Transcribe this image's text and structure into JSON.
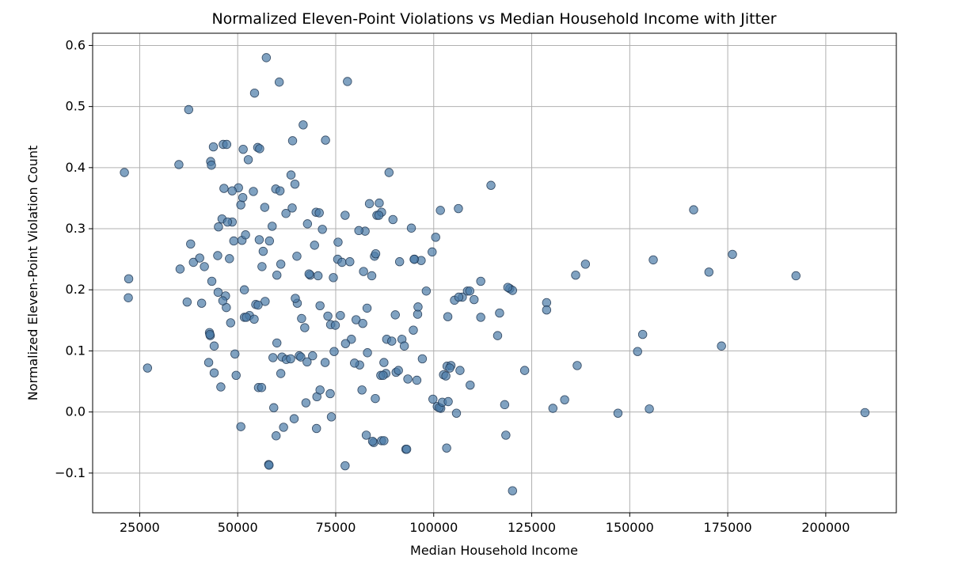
{
  "chart_data": {
    "type": "scatter",
    "title": "Normalized Eleven-Point Violations vs Median Household Income with Jitter",
    "xlabel": "Median Household Income",
    "ylabel": "Normalized Eleven-Point Violation Count",
    "xlim": [
      13000,
      218000
    ],
    "ylim": [
      -0.165,
      0.62
    ],
    "x_ticks": [
      25000,
      50000,
      75000,
      100000,
      125000,
      150000,
      175000,
      200000
    ],
    "x_tick_labels": [
      "25000",
      "50000",
      "75000",
      "100000",
      "125000",
      "150000",
      "175000",
      "200000"
    ],
    "y_ticks": [
      -0.1,
      0.0,
      0.1,
      0.2,
      0.3,
      0.4,
      0.5,
      0.6
    ],
    "y_tick_labels": [
      "−0.1",
      "0.0",
      "0.1",
      "0.2",
      "0.3",
      "0.4",
      "0.5",
      "0.6"
    ],
    "grid": true,
    "marker_color": "#4a7aa7",
    "marker_edge_color": "#1f3550",
    "marker_alpha": 0.7,
    "x": [
      21100,
      22100,
      22200,
      27000,
      35000,
      35300,
      37100,
      37500,
      38000,
      38700,
      40300,
      40800,
      41500,
      42600,
      42800,
      43100,
      43300,
      43400,
      43800,
      44000,
      44900,
      45000,
      45100,
      45700,
      46000,
      46300,
      46500,
      46900,
      47200,
      47900,
      48200,
      48600,
      49300,
      50200,
      50800,
      51100,
      51400,
      51700,
      52000,
      53000,
      54000,
      54300,
      54600,
      55100,
      55300,
      55600,
      56200,
      56900,
      57300,
      58100,
      59200,
      59700,
      60000,
      60600,
      61000,
      61300,
      62400,
      63600,
      64000,
      64600,
      65100,
      65700,
      66700,
      67100,
      67800,
      68500,
      69100,
      70000,
      70500,
      71000,
      71600,
      72400,
      73000,
      73700,
      74600,
      75500,
      76600,
      77400,
      78000,
      79000,
      80200,
      81100,
      81700,
      82500,
      83000,
      83600,
      84200,
      84900,
      85500,
      86100,
      86700,
      87300,
      88000,
      88600,
      89600,
      90400,
      91300,
      91900,
      92500,
      93400,
      94300,
      95100,
      95900,
      96800,
      98100,
      99800,
      100900,
      101700,
      102500,
      103400,
      104400,
      105300,
      106300,
      107300,
      108600,
      110300,
      112000,
      116300,
      118100,
      119400,
      123200,
      128800,
      130400,
      133400,
      136200,
      136600,
      138700,
      147000,
      152000,
      153300,
      155000,
      156000,
      166300,
      170200,
      173400,
      176200,
      192400,
      210000,
      43000,
      47100,
      49000,
      51300,
      55500,
      60800,
      63900,
      66300,
      68200,
      70200,
      72300,
      75600,
      78600,
      81900,
      85200,
      87800,
      91000,
      94800,
      99600,
      103600,
      106700,
      114600,
      48600,
      52700,
      56100,
      58800,
      62300,
      65200,
      70800,
      76200,
      83100,
      86500,
      90200,
      97100,
      101800,
      109300,
      116800,
      120100,
      128800,
      61000,
      57900,
      64400,
      70100,
      73900,
      82800,
      86700,
      101400,
      105800,
      118900,
      44000,
      51700,
      60000,
      66100,
      71000,
      77500,
      84700,
      95700,
      103100,
      112000,
      46200,
      52200,
      59000,
      64700,
      69600,
      74900,
      80900,
      89300,
      95000,
      102200,
      106400,
      42900,
      49600,
      54200,
      57000,
      63500,
      67700,
      73600,
      79800,
      87100,
      92900,
      100500,
      104100,
      118400,
      55200,
      47400,
      50800,
      56500,
      61700,
      67400,
      74400,
      82100,
      86000,
      96000,
      103700,
      109200,
      85100
    ],
    "y": [
      0.392,
      0.187,
      0.218,
      0.072,
      0.405,
      0.234,
      0.18,
      0.495,
      0.275,
      0.245,
      0.252,
      0.178,
      0.238,
      0.081,
      0.13,
      0.41,
      0.404,
      0.214,
      0.434,
      0.108,
      0.256,
      0.196,
      0.303,
      0.041,
      0.316,
      0.438,
      0.366,
      0.19,
      0.438,
      0.251,
      0.146,
      0.311,
      0.095,
      0.367,
      0.339,
      0.281,
      0.43,
      0.155,
      0.29,
      0.158,
      0.361,
      0.522,
      0.176,
      0.433,
      0.04,
      0.431,
      0.238,
      0.335,
      0.58,
      0.28,
      0.007,
      0.365,
      0.113,
      0.54,
      0.242,
      0.09,
      0.086,
      0.388,
      0.444,
      0.373,
      0.255,
      0.092,
      0.47,
      0.138,
      0.308,
      0.224,
      0.092,
      0.327,
      0.223,
      0.174,
      0.299,
      0.445,
      0.157,
      0.143,
      0.099,
      0.25,
      0.245,
      0.322,
      0.541,
      0.119,
      0.151,
      0.077,
      0.036,
      0.296,
      0.17,
      0.341,
      0.223,
      0.255,
      0.322,
      0.342,
      0.327,
      0.081,
      0.119,
      0.392,
      0.315,
      0.065,
      0.246,
      0.119,
      0.108,
      0.054,
      0.301,
      0.25,
      0.16,
      0.248,
      0.198,
      0.021,
      0.009,
      0.33,
      0.061,
      0.075,
      0.076,
      0.183,
      0.333,
      0.188,
      0.198,
      0.184,
      0.214,
      0.125,
      0.012,
      0.202,
      0.068,
      0.179,
      0.006,
      0.02,
      0.224,
      0.076,
      0.242,
      -0.002,
      0.099,
      0.127,
      0.005,
      0.249,
      0.331,
      0.229,
      0.108,
      0.258,
      0.223,
      -0.001,
      0.125,
      0.171,
      0.28,
      0.351,
      0.282,
      0.362,
      0.334,
      0.153,
      0.226,
      0.025,
      0.081,
      0.278,
      0.246,
      0.145,
      0.259,
      0.063,
      0.068,
      0.134,
      0.262,
      0.156,
      0.068,
      0.371,
      0.362,
      0.413,
      0.04,
      0.304,
      0.325,
      0.178,
      0.326,
      0.158,
      0.097,
      0.06,
      0.159,
      0.087,
      0.006,
      0.044,
      0.162,
      0.199,
      0.167,
      0.063,
      -0.086,
      -0.011,
      -0.027,
      -0.008,
      -0.038,
      -0.047,
      0.007,
      -0.002,
      0.204,
      0.064,
      0.2,
      0.224,
      0.09,
      0.036,
      0.112,
      -0.05,
      0.052,
      0.059,
      0.155,
      0.182,
      0.155,
      0.089,
      0.186,
      0.273,
      0.142,
      0.297,
      0.116,
      0.25,
      0.016,
      0.188,
      0.127,
      0.06,
      0.152,
      0.181,
      0.087,
      0.082,
      0.03,
      0.08,
      0.06,
      -0.061,
      0.286,
      0.072,
      -0.038,
      0.175,
      0.311,
      -0.024,
      0.263,
      -0.025,
      0.015,
      0.22,
      0.23,
      0.322,
      0.172,
      0.017,
      0.198,
      0.022
    ],
    "outliers": {
      "x": [
        58000,
        77400,
        120100,
        59800,
        84400,
        87300,
        93100,
        103300
      ],
      "y": [
        -0.087,
        -0.088,
        -0.129,
        -0.039,
        -0.048,
        -0.047,
        -0.061,
        -0.059
      ]
    }
  }
}
